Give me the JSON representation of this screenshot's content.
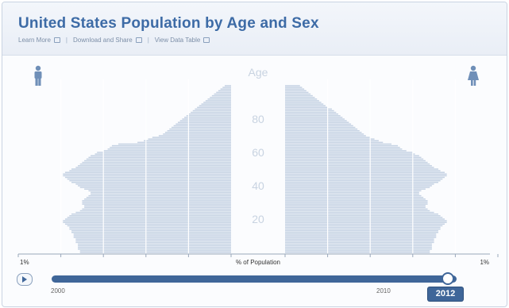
{
  "header": {
    "title": "United States Population by Age and Sex",
    "links": [
      "Learn More",
      "Download and Share",
      "View Data Table"
    ]
  },
  "icons": {
    "left": "male-icon",
    "right": "female-icon"
  },
  "colors": {
    "bars": "#c5d2e3",
    "accent": "#3f6699",
    "title": "#3d6ba6",
    "icon": "#6f8fb8"
  },
  "chart_data": {
    "type": "bar",
    "orientation": "horizontal",
    "title": "United States Population by Age and Sex",
    "center_label": "Age",
    "age_ticks": [
      "20",
      "40",
      "60",
      "80"
    ],
    "xlabel": "% of Population",
    "x_left_label": "1%",
    "x_right_label": "1%",
    "xlim": [
      0,
      1
    ],
    "ages": [
      0,
      1,
      2,
      3,
      4,
      5,
      6,
      7,
      8,
      9,
      10,
      11,
      12,
      13,
      14,
      15,
      16,
      17,
      18,
      19,
      20,
      21,
      22,
      23,
      24,
      25,
      26,
      27,
      28,
      29,
      30,
      31,
      32,
      33,
      34,
      35,
      36,
      37,
      38,
      39,
      40,
      41,
      42,
      43,
      44,
      45,
      46,
      47,
      48,
      49,
      50,
      51,
      52,
      53,
      54,
      55,
      56,
      57,
      58,
      59,
      60,
      61,
      62,
      63,
      64,
      65,
      66,
      67,
      68,
      69,
      70,
      71,
      72,
      73,
      74,
      75,
      76,
      77,
      78,
      79,
      80,
      81,
      82,
      83,
      84,
      85,
      86,
      87,
      88,
      89,
      90,
      91,
      92,
      93,
      94,
      95,
      96,
      97,
      98,
      99,
      100
    ],
    "series": [
      {
        "name": "Male",
        "values": [
          0.71,
          0.71,
          0.72,
          0.72,
          0.72,
          0.72,
          0.73,
          0.73,
          0.73,
          0.74,
          0.74,
          0.74,
          0.75,
          0.75,
          0.76,
          0.76,
          0.77,
          0.78,
          0.79,
          0.79,
          0.78,
          0.77,
          0.76,
          0.75,
          0.73,
          0.71,
          0.7,
          0.69,
          0.69,
          0.7,
          0.7,
          0.7,
          0.69,
          0.68,
          0.67,
          0.66,
          0.66,
          0.67,
          0.69,
          0.71,
          0.72,
          0.73,
          0.75,
          0.76,
          0.77,
          0.78,
          0.79,
          0.79,
          0.78,
          0.76,
          0.75,
          0.73,
          0.72,
          0.71,
          0.7,
          0.69,
          0.68,
          0.67,
          0.66,
          0.64,
          0.63,
          0.6,
          0.58,
          0.57,
          0.56,
          0.53,
          0.44,
          0.41,
          0.39,
          0.37,
          0.34,
          0.32,
          0.31,
          0.3,
          0.29,
          0.28,
          0.27,
          0.26,
          0.25,
          0.24,
          0.23,
          0.22,
          0.21,
          0.2,
          0.19,
          0.18,
          0.17,
          0.16,
          0.15,
          0.14,
          0.13,
          0.12,
          0.11,
          0.1,
          0.09,
          0.08,
          0.07,
          0.06,
          0.05,
          0.04,
          0.03
        ]
      },
      {
        "name": "Female",
        "values": [
          0.68,
          0.68,
          0.69,
          0.69,
          0.69,
          0.69,
          0.7,
          0.7,
          0.7,
          0.71,
          0.71,
          0.71,
          0.72,
          0.72,
          0.73,
          0.73,
          0.74,
          0.75,
          0.76,
          0.76,
          0.75,
          0.74,
          0.73,
          0.72,
          0.7,
          0.68,
          0.67,
          0.66,
          0.66,
          0.67,
          0.67,
          0.67,
          0.66,
          0.65,
          0.64,
          0.63,
          0.63,
          0.64,
          0.66,
          0.68,
          0.69,
          0.7,
          0.72,
          0.73,
          0.74,
          0.75,
          0.76,
          0.76,
          0.75,
          0.73,
          0.72,
          0.7,
          0.69,
          0.68,
          0.67,
          0.66,
          0.65,
          0.64,
          0.63,
          0.61,
          0.6,
          0.57,
          0.55,
          0.54,
          0.53,
          0.5,
          0.46,
          0.44,
          0.42,
          0.4,
          0.38,
          0.37,
          0.36,
          0.35,
          0.34,
          0.33,
          0.32,
          0.31,
          0.3,
          0.29,
          0.28,
          0.27,
          0.26,
          0.25,
          0.24,
          0.23,
          0.22,
          0.2,
          0.19,
          0.18,
          0.17,
          0.16,
          0.15,
          0.14,
          0.13,
          0.12,
          0.11,
          0.1,
          0.09,
          0.08,
          0.07
        ]
      }
    ]
  },
  "timeline": {
    "start_label": "2000",
    "mid_label": "2010",
    "current_year": "2012"
  }
}
